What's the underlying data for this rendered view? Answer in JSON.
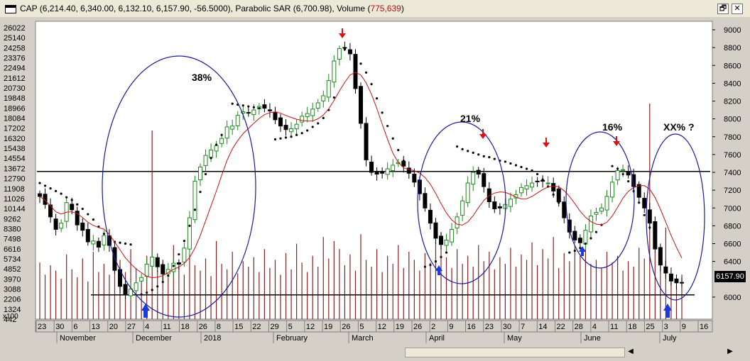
{
  "window": {
    "title_main": "CAP (6,214.40, 6,340.00, 6,132.10, 6,157.90, -56.5000), Parabolic SAR (6,700.98), Volume (",
    "title_volume": "775,639",
    "title_end": ")",
    "restore_glyph": "🗗",
    "close_glyph": "✕"
  },
  "price_label": "6157.90",
  "volume_unit_label": "x100",
  "scroll": {
    "left_glyph": "◀",
    "right_glyph": "▶"
  },
  "annotations": {
    "pct1": "38%",
    "pct2": "21%",
    "pct3": "16%",
    "pct4": "XX% ?"
  },
  "chart_data": {
    "type": "candlestick",
    "left_axis_ticks": [
      "26022",
      "25140",
      "24258",
      "23376",
      "22494",
      "21612",
      "20730",
      "19848",
      "18966",
      "18084",
      "17202",
      "16320",
      "15438",
      "14554",
      "13672",
      "12790",
      "11908",
      "11026",
      "10144",
      "9262",
      "8380",
      "7498",
      "6616",
      "5734",
      "4852",
      "3970",
      "3088",
      "2206",
      "1324",
      "442"
    ],
    "right_axis_ticks": [
      "9000",
      "8800",
      "8600",
      "8400",
      "8200",
      "8000",
      "7800",
      "7600",
      "7400",
      "7200",
      "7000",
      "6800",
      "6600",
      "6400",
      "6000"
    ],
    "right_range": [
      5800,
      9100
    ],
    "date_ticks": [
      "23",
      "30",
      "6",
      "13",
      "20",
      "27",
      "4",
      "11",
      "18",
      "26",
      "8",
      "15",
      "22",
      "29",
      "5",
      "12",
      "19",
      "26",
      "5",
      "12",
      "19",
      "26",
      "2",
      "9",
      "16",
      "23",
      "30",
      "7",
      "14",
      "22",
      "28",
      "4",
      "11",
      "18",
      "25",
      "3",
      "9",
      "16"
    ],
    "month_labels": [
      "November",
      "December",
      "2018",
      "February",
      "March",
      "April",
      "May",
      "June",
      "July"
    ],
    "horizontal_lines": [
      7410,
      6025
    ],
    "closes": [
      7130,
      7040,
      6900,
      6760,
      6830,
      7060,
      6980,
      6810,
      6750,
      6620,
      6630,
      6560,
      6690,
      6580,
      6300,
      6120,
      6030,
      6090,
      6160,
      6220,
      6370,
      6450,
      6340,
      6260,
      6310,
      6380,
      6370,
      6550,
      6890,
      7300,
      7460,
      7590,
      7650,
      7700,
      7780,
      7910,
      7920,
      8040,
      8080,
      8070,
      8100,
      8140,
      8120,
      8090,
      7990,
      7920,
      7880,
      7890,
      7940,
      8030,
      8060,
      8110,
      8180,
      8260,
      8430,
      8650,
      8790,
      8800,
      8730,
      8340,
      7950,
      7540,
      7400,
      7380,
      7390,
      7440,
      7480,
      7510,
      7470,
      7390,
      7290,
      7160,
      7000,
      6830,
      6660,
      6590,
      6640,
      6760,
      6900,
      7080,
      7280,
      7400,
      7380,
      7240,
      7070,
      6990,
      7000,
      7040,
      7100,
      7150,
      7230,
      7250,
      7280,
      7300,
      7300,
      7280,
      7190,
      7070,
      6890,
      6730,
      6640,
      6610,
      6750,
      6910,
      6950,
      7000,
      7130,
      7290,
      7420,
      7430,
      7370,
      7240,
      7120,
      7000,
      6830,
      6540,
      6360,
      6270,
      6180,
      6160,
      6158
    ],
    "sar_points": [
      [
        0,
        7280
      ],
      [
        1,
        7250
      ],
      [
        2,
        7220
      ],
      [
        3,
        7190
      ],
      [
        4,
        7160
      ],
      [
        5,
        7120
      ],
      [
        6,
        7090
      ],
      [
        7,
        7040
      ],
      [
        8,
        6990
      ],
      [
        9,
        6930
      ],
      [
        10,
        6870
      ],
      [
        11,
        6790
      ],
      [
        12,
        6710
      ],
      [
        14,
        6620
      ],
      [
        15,
        6610
      ],
      [
        16,
        6600
      ],
      [
        17,
        6590
      ],
      [
        19,
        6030
      ],
      [
        20,
        6050
      ],
      [
        21,
        6080
      ],
      [
        22,
        6120
      ],
      [
        23,
        6170
      ],
      [
        24,
        6240
      ],
      [
        25,
        6350
      ],
      [
        26,
        6480
      ],
      [
        27,
        6630
      ],
      [
        28,
        6800
      ],
      [
        29,
        6980
      ],
      [
        30,
        7180
      ],
      [
        31,
        7380
      ],
      [
        32,
        7560
      ],
      [
        33,
        7710
      ],
      [
        34,
        7820
      ],
      [
        36,
        8170
      ],
      [
        37,
        8160
      ],
      [
        38,
        8150
      ],
      [
        39,
        8140
      ],
      [
        40,
        8130
      ],
      [
        41,
        8120
      ],
      [
        44,
        7770
      ],
      [
        45,
        7780
      ],
      [
        46,
        7790
      ],
      [
        47,
        7800
      ],
      [
        48,
        7820
      ],
      [
        49,
        7840
      ],
      [
        50,
        7870
      ],
      [
        51,
        7910
      ],
      [
        52,
        7950
      ],
      [
        53,
        8010
      ],
      [
        54,
        8100
      ],
      [
        55,
        8240
      ],
      [
        57,
        8780
      ],
      [
        58,
        8740
      ],
      [
        59,
        8690
      ],
      [
        60,
        8620
      ],
      [
        61,
        8520
      ],
      [
        62,
        8390
      ],
      [
        63,
        8230
      ],
      [
        64,
        8070
      ],
      [
        65,
        7920
      ],
      [
        66,
        7780
      ],
      [
        67,
        7650
      ],
      [
        68,
        7530
      ],
      [
        69,
        7420
      ],
      [
        72,
        6340
      ],
      [
        73,
        6360
      ],
      [
        74,
        6400
      ],
      [
        75,
        6450
      ],
      [
        76,
        6500
      ],
      [
        78,
        7690
      ],
      [
        79,
        7660
      ],
      [
        80,
        7640
      ],
      [
        81,
        7620
      ],
      [
        82,
        7600
      ],
      [
        83,
        7580
      ],
      [
        84,
        7570
      ],
      [
        85,
        7550
      ],
      [
        86,
        7530
      ],
      [
        87,
        7520
      ],
      [
        88,
        7500
      ],
      [
        89,
        7480
      ],
      [
        90,
        7460
      ],
      [
        91,
        7440
      ],
      [
        92,
        7420
      ],
      [
        93,
        7380
      ],
      [
        94,
        7320
      ],
      [
        95,
        7240
      ],
      [
        96,
        7150
      ],
      [
        97,
        7060
      ],
      [
        99,
        6500
      ],
      [
        100,
        6520
      ],
      [
        101,
        6550
      ],
      [
        102,
        6600
      ],
      [
        103,
        6660
      ],
      [
        104,
        6730
      ],
      [
        105,
        6810
      ],
      [
        107,
        7470
      ],
      [
        108,
        7440
      ],
      [
        109,
        7380
      ],
      [
        110,
        7300
      ],
      [
        111,
        7190
      ],
      [
        112,
        7060
      ],
      [
        113,
        6920
      ],
      [
        114,
        6780
      ]
    ],
    "volumes": [
      42,
      33,
      40,
      36,
      30,
      48,
      37,
      31,
      45,
      28,
      50,
      35,
      41,
      33,
      39,
      44,
      35,
      52,
      38,
      30,
      47,
      140,
      36,
      42,
      31,
      55,
      39,
      33,
      48,
      40,
      36,
      45,
      32,
      58,
      41,
      37,
      50,
      34,
      43,
      39,
      46,
      35,
      52,
      38,
      44,
      33,
      49,
      37,
      56,
      42,
      35,
      47,
      39,
      61,
      45,
      58,
      52,
      40,
      48,
      36,
      63,
      44,
      39,
      52,
      35,
      47,
      41,
      55,
      38,
      50,
      44,
      36,
      49,
      42,
      57,
      64,
      46,
      38,
      52,
      41,
      47,
      39,
      55,
      43,
      50,
      37,
      46,
      41,
      53,
      39,
      48,
      44,
      57,
      40,
      52,
      45,
      61,
      38,
      49,
      43,
      55,
      47,
      52,
      41,
      44,
      38,
      50,
      42,
      47,
      36,
      43,
      39,
      53,
      45,
      160,
      50,
      41,
      68,
      30,
      25,
      33
    ],
    "volume_max": 160
  }
}
